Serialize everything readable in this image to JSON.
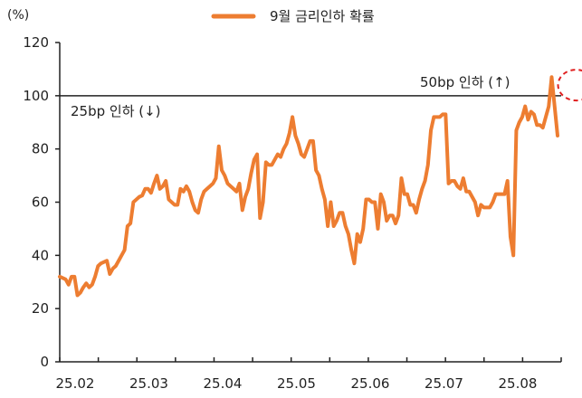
{
  "chart_data": {
    "type": "line",
    "unit_label": "(%)",
    "legend_placement": "top-center",
    "ylim": [
      0,
      120
    ],
    "y_ticks": [
      0,
      20,
      40,
      60,
      80,
      100,
      120
    ],
    "x_tick_labels": [
      "25.02",
      "25.03",
      "25.04",
      "25.05",
      "25.06",
      "25.07",
      "25.08"
    ],
    "series": [
      {
        "name": "9월 금리인하 확률",
        "color": "#ED7D31",
        "values": [
          32,
          31.5,
          31,
          29,
          32,
          32,
          25,
          26,
          28,
          29.5,
          28,
          29,
          32,
          36,
          37,
          37.5,
          38,
          33,
          35,
          36,
          38,
          40,
          42,
          51,
          52,
          60,
          61,
          62,
          62.5,
          65,
          65,
          63.5,
          67,
          70,
          65,
          66,
          68,
          61,
          60,
          59,
          59,
          65,
          64,
          66,
          64,
          60,
          57,
          56,
          61,
          64,
          65,
          66,
          67,
          69,
          81,
          72,
          70,
          67,
          66,
          65,
          64,
          67,
          57,
          62,
          65,
          71,
          76,
          78,
          54,
          60,
          75,
          74,
          74,
          76,
          78,
          77,
          80,
          82,
          86,
          92,
          85,
          82,
          78,
          77,
          80,
          83,
          83,
          72,
          70,
          65,
          61,
          51,
          60,
          51,
          53,
          56,
          56,
          51,
          48,
          42,
          37,
          48,
          45,
          50,
          61,
          61,
          60,
          60,
          50,
          63,
          60,
          53,
          55,
          55,
          52,
          55,
          69,
          63,
          63,
          59,
          59,
          56,
          61,
          65,
          68,
          74,
          87,
          92,
          92,
          92,
          93,
          93,
          67,
          68,
          68,
          66,
          65,
          69,
          64,
          64,
          62,
          60,
          55,
          59,
          58,
          58,
          58,
          60,
          63,
          63,
          63,
          63,
          68,
          47,
          40,
          87,
          90,
          92,
          96,
          91,
          94,
          93,
          89,
          89,
          88,
          92,
          96,
          107,
          96,
          85
        ]
      }
    ],
    "reference_line": {
      "value": 100
    },
    "annotations": [
      {
        "text": "50bp 인하 (↑)"
      },
      {
        "text": "25bp 인하 (↓)"
      }
    ],
    "highlight": {
      "type": "dashed-circle",
      "color": "#E02020",
      "x_index": 175,
      "y": 104
    }
  }
}
